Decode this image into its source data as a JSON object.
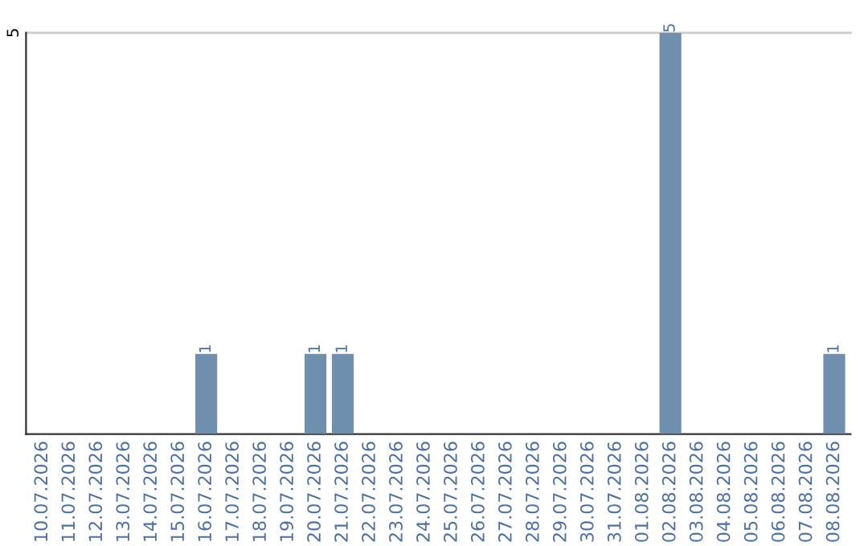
{
  "chart_data": {
    "type": "bar",
    "categories": [
      "10.07.2026",
      "11.07.2026",
      "12.07.2026",
      "13.07.2026",
      "14.07.2026",
      "15.07.2026",
      "16.07.2026",
      "17.07.2026",
      "18.07.2026",
      "19.07.2026",
      "20.07.2026",
      "21.07.2026",
      "22.07.2026",
      "23.07.2026",
      "24.07.2026",
      "25.07.2026",
      "26.07.2026",
      "27.07.2026",
      "28.07.2026",
      "29.07.2026",
      "30.07.2026",
      "31.07.2026",
      "01.08.2026",
      "02.08.2026",
      "03.08.2026",
      "04.08.2026",
      "05.08.2026",
      "06.08.2026",
      "07.08.2026",
      "08.08.2026"
    ],
    "values": [
      0,
      0,
      0,
      0,
      0,
      0,
      1,
      0,
      0,
      0,
      1,
      1,
      0,
      0,
      0,
      0,
      0,
      0,
      0,
      0,
      0,
      0,
      0,
      5,
      0,
      0,
      0,
      0,
      0,
      1
    ],
    "color": "#6f8fae",
    "value_labels": [
      null,
      null,
      null,
      null,
      null,
      null,
      "1",
      null,
      null,
      null,
      "1",
      "1",
      null,
      null,
      null,
      null,
      null,
      null,
      null,
      null,
      null,
      null,
      null,
      "5",
      null,
      null,
      null,
      null,
      null,
      "1"
    ],
    "ylim": [
      0,
      5
    ],
    "yticks": [
      5
    ],
    "ref_lines": [
      {
        "axis": "y",
        "value": 5,
        "color": "#cccccc"
      }
    ]
  }
}
